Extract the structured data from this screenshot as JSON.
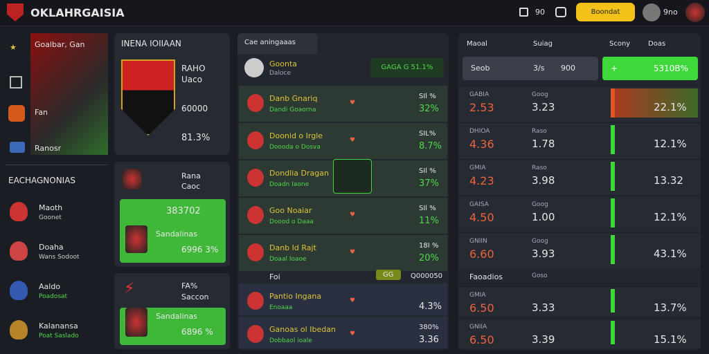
{
  "header": {
    "brand": "OKLAHRGAISIA",
    "count": "90",
    "button": "Boondat",
    "user": "9no"
  },
  "sidebar": {
    "feature_title": "Goalbar, Gan",
    "feature_items": [
      "Fan",
      "Ranosr"
    ],
    "section": "EACHAGNONIAS",
    "teams": [
      {
        "name": "Maoth",
        "sub": "Goonet"
      },
      {
        "name": "Doaha",
        "sub": "Wans Sodoot"
      },
      {
        "name": "Aaldo",
        "sub": "Poadosat"
      },
      {
        "name": "Kalanansa",
        "sub": "Poat Saslado"
      }
    ]
  },
  "cards": [
    {
      "title": "INENA IOIIAAN",
      "line1": "RAHO",
      "line2": "Uaco",
      "value": "60000",
      "pct": "81.3%"
    },
    {
      "title": "Rana",
      "sub": "Caoc",
      "value": "383702",
      "name": "Sandalinas",
      "pct": "6996 3%"
    },
    {
      "title": "FA%",
      "sub": "Saccon",
      "name": "Sandalinas",
      "pct": "6896 %"
    }
  ],
  "matches": {
    "tab": "Cae aningaaas",
    "head_name": "Goonta",
    "head_sub": "Daloce",
    "head_badge": "GAGA G 51.1%",
    "rows": [
      {
        "name": "Danb Gnariq",
        "sub": "Dandi Goaorna",
        "top": "SIl %",
        "bottom": "32%"
      },
      {
        "name": "Doonid o Irgle",
        "sub": "Doooda o Dosva",
        "top": "SIL%",
        "bottom": "8.7%"
      },
      {
        "name": "Dondlia Dragan",
        "sub": "Doadn Iaone",
        "top": "SIl %",
        "bottom": "37%"
      },
      {
        "name": "Goo Noaiar",
        "sub": "Doood o Daaa",
        "top": "SIl %",
        "bottom": "11%"
      },
      {
        "name": "Danb Id Rajt",
        "sub": "Doaal Ioaoe",
        "top": "18I %",
        "bottom": "20%"
      }
    ],
    "separator": {
      "label": "Foi",
      "badge": "GG",
      "value": "Q000050"
    },
    "rows2": [
      {
        "name": "Pantio Ingana",
        "sub": "Enoaaa",
        "bottom": "4.3%"
      },
      {
        "name": "Ganoas ol Ibedan",
        "sub": "Dobbaol ioale",
        "top": "380%",
        "bottom": "3.36"
      }
    ]
  },
  "odds": {
    "headers": [
      "Maoal",
      "Suiag",
      "Scony",
      "Doas"
    ],
    "bar": {
      "label": "Seob",
      "a": "3/s",
      "b": "900",
      "value": "5310B%"
    },
    "rows": [
      {
        "label": "GABIA",
        "odd": "2.53",
        "sub": "Goog",
        "mid": "3.23",
        "right": "22.1%"
      },
      {
        "label": "DHIOA",
        "odd": "4.36",
        "sub": "Raso",
        "mid": "1.78",
        "right": "12.1%"
      },
      {
        "label": "GMIA",
        "odd": "4.23",
        "sub": "Raso",
        "mid": "3.98",
        "right": "13.32"
      },
      {
        "label": "GAISA",
        "odd": "4.50",
        "sub": "Goog",
        "mid": "1.00",
        "right": "12.1%"
      },
      {
        "label": "GNIIN",
        "odd": "6.60",
        "sub": "Goog",
        "mid": "3.93",
        "right": "43.1%"
      }
    ],
    "separator": {
      "a": "Faoadios",
      "b": "Goso"
    },
    "rows2": [
      {
        "label": "GMIA",
        "odd": "6.50",
        "mid": "3.33",
        "right": "13.7%"
      },
      {
        "label": "GNIIA",
        "odd": "6.50",
        "mid": "3.39",
        "right": "15.1%"
      }
    ]
  }
}
